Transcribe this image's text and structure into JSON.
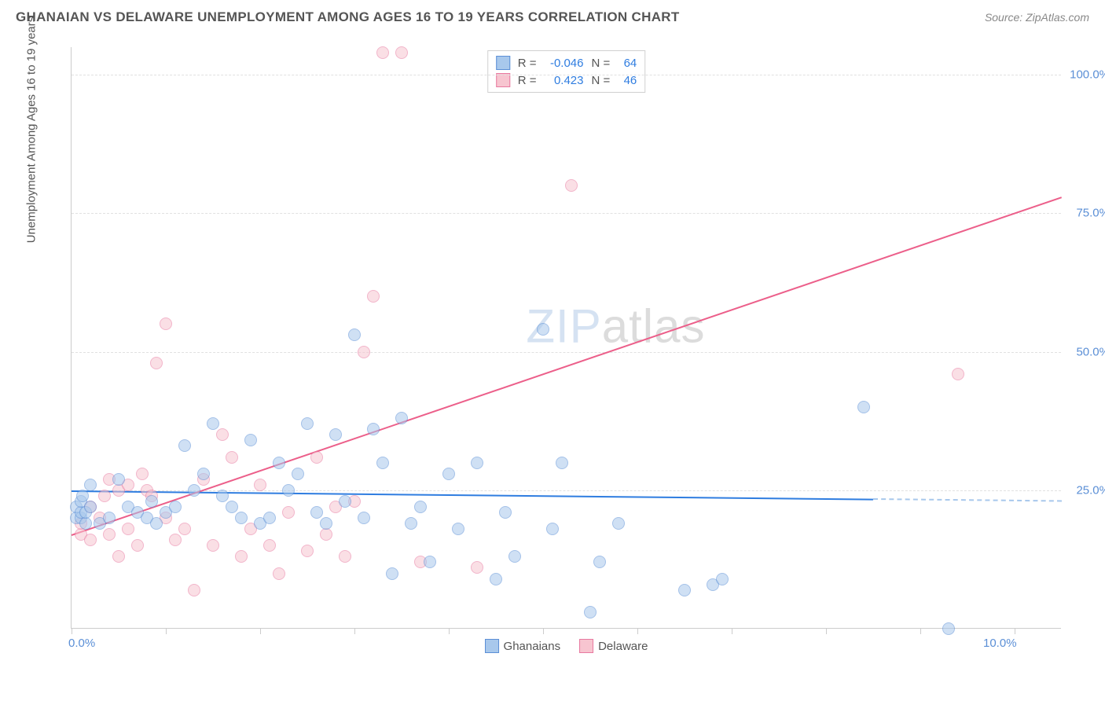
{
  "header": {
    "title": "GHANAIAN VS DELAWARE UNEMPLOYMENT AMONG AGES 16 TO 19 YEARS CORRELATION CHART",
    "source": "Source: ZipAtlas.com"
  },
  "watermark": {
    "part1": "ZIP",
    "part2": "atlas"
  },
  "chart": {
    "type": "scatter",
    "y_axis_title": "Unemployment Among Ages 16 to 19 years",
    "xlim": [
      0,
      10.5
    ],
    "ylim": [
      0,
      105
    ],
    "x_ticks": [
      0,
      1,
      2,
      3,
      4,
      5,
      6,
      7,
      8,
      9,
      10
    ],
    "y_grid": [
      25,
      50,
      75,
      100
    ],
    "x_labels": {
      "0": "0.0%",
      "10": "10.0%"
    },
    "y_labels": {
      "25": "25.0%",
      "50": "50.0%",
      "75": "75.0%",
      "100": "100.0%"
    },
    "background_color": "#ffffff",
    "grid_color": "#e0e0e0",
    "series": {
      "blue": {
        "name": "Ghanaians",
        "fill": "#a8c8ec",
        "stroke": "#5b8fd6",
        "R": "-0.046",
        "N": "64",
        "trendline": {
          "x1": 0,
          "y1": 25,
          "x2": 8.5,
          "y2": 23.5,
          "color": "#2f7de0",
          "dash_from_x": 8.5,
          "dash_to_x": 10.5
        },
        "points": [
          [
            0.05,
            20
          ],
          [
            0.05,
            22
          ],
          [
            0.1,
            20
          ],
          [
            0.1,
            21
          ],
          [
            0.1,
            23
          ],
          [
            0.12,
            24
          ],
          [
            0.15,
            19
          ],
          [
            0.15,
            21
          ],
          [
            0.2,
            22
          ],
          [
            0.2,
            26
          ],
          [
            0.3,
            19
          ],
          [
            0.4,
            20
          ],
          [
            0.5,
            27
          ],
          [
            0.6,
            22
          ],
          [
            0.7,
            21
          ],
          [
            0.8,
            20
          ],
          [
            0.85,
            23
          ],
          [
            0.9,
            19
          ],
          [
            1.0,
            21
          ],
          [
            1.1,
            22
          ],
          [
            1.2,
            33
          ],
          [
            1.3,
            25
          ],
          [
            1.4,
            28
          ],
          [
            1.5,
            37
          ],
          [
            1.6,
            24
          ],
          [
            1.7,
            22
          ],
          [
            1.8,
            20
          ],
          [
            1.9,
            34
          ],
          [
            2.0,
            19
          ],
          [
            2.1,
            20
          ],
          [
            2.2,
            30
          ],
          [
            2.3,
            25
          ],
          [
            2.4,
            28
          ],
          [
            2.5,
            37
          ],
          [
            2.6,
            21
          ],
          [
            2.7,
            19
          ],
          [
            2.8,
            35
          ],
          [
            2.9,
            23
          ],
          [
            3.0,
            53
          ],
          [
            3.1,
            20
          ],
          [
            3.2,
            36
          ],
          [
            3.3,
            30
          ],
          [
            3.4,
            10
          ],
          [
            3.5,
            38
          ],
          [
            3.6,
            19
          ],
          [
            3.7,
            22
          ],
          [
            3.8,
            12
          ],
          [
            4.0,
            28
          ],
          [
            4.1,
            18
          ],
          [
            4.3,
            30
          ],
          [
            4.5,
            9
          ],
          [
            4.6,
            21
          ],
          [
            4.7,
            13
          ],
          [
            5.0,
            54
          ],
          [
            5.1,
            18
          ],
          [
            5.2,
            30
          ],
          [
            5.5,
            3
          ],
          [
            5.6,
            12
          ],
          [
            5.8,
            19
          ],
          [
            6.5,
            7
          ],
          [
            6.8,
            8
          ],
          [
            6.9,
            9
          ],
          [
            8.4,
            40
          ],
          [
            9.3,
            0
          ]
        ]
      },
      "pink": {
        "name": "Delaware",
        "fill": "#f7c5d0",
        "stroke": "#e879a0",
        "R": "0.423",
        "N": "46",
        "trendline": {
          "x1": 0,
          "y1": 17,
          "x2": 10.5,
          "y2": 78,
          "color": "#ec5f8a"
        },
        "points": [
          [
            0.1,
            17
          ],
          [
            0.1,
            19
          ],
          [
            0.2,
            16
          ],
          [
            0.2,
            22
          ],
          [
            0.3,
            20
          ],
          [
            0.35,
            24
          ],
          [
            0.4,
            17
          ],
          [
            0.4,
            27
          ],
          [
            0.5,
            13
          ],
          [
            0.5,
            25
          ],
          [
            0.6,
            18
          ],
          [
            0.6,
            26
          ],
          [
            0.7,
            15
          ],
          [
            0.75,
            28
          ],
          [
            0.8,
            25
          ],
          [
            0.85,
            24
          ],
          [
            0.9,
            48
          ],
          [
            1.0,
            20
          ],
          [
            1.0,
            55
          ],
          [
            1.1,
            16
          ],
          [
            1.2,
            18
          ],
          [
            1.3,
            7
          ],
          [
            1.4,
            27
          ],
          [
            1.5,
            15
          ],
          [
            1.6,
            35
          ],
          [
            1.7,
            31
          ],
          [
            1.8,
            13
          ],
          [
            1.9,
            18
          ],
          [
            2.0,
            26
          ],
          [
            2.1,
            15
          ],
          [
            2.2,
            10
          ],
          [
            2.3,
            21
          ],
          [
            2.5,
            14
          ],
          [
            2.6,
            31
          ],
          [
            2.7,
            17
          ],
          [
            2.8,
            22
          ],
          [
            2.9,
            13
          ],
          [
            3.0,
            23
          ],
          [
            3.1,
            50
          ],
          [
            3.2,
            60
          ],
          [
            3.3,
            104
          ],
          [
            3.5,
            104
          ],
          [
            3.7,
            12
          ],
          [
            4.3,
            11
          ],
          [
            5.3,
            80
          ],
          [
            9.4,
            46
          ]
        ]
      }
    },
    "bottom_legend": [
      "Ghanaians",
      "Delaware"
    ]
  }
}
